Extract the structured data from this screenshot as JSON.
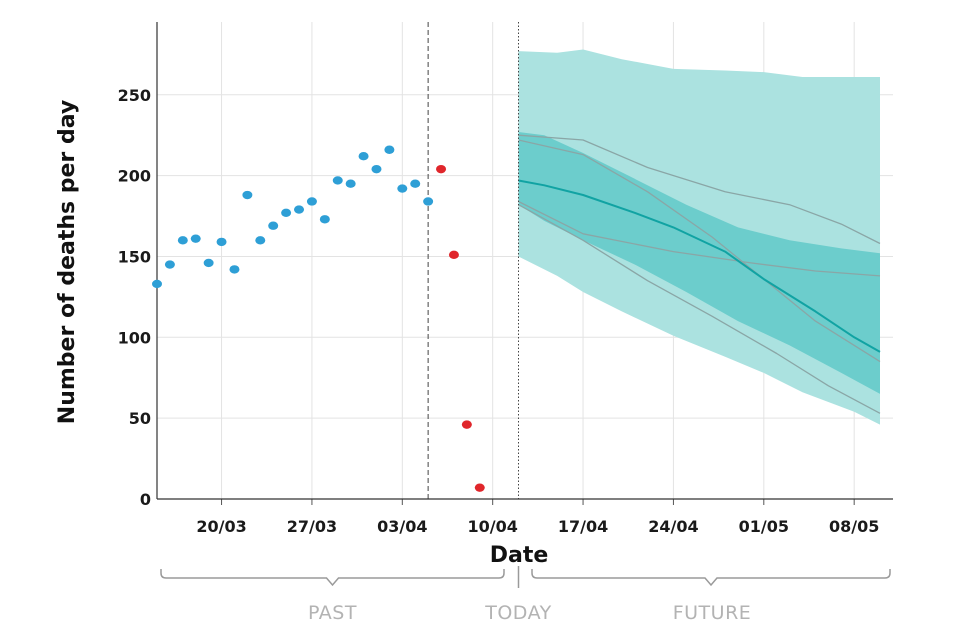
{
  "chart_data": {
    "type": "scatter",
    "xlabel": "Date",
    "ylabel": "Number of deaths per day",
    "ylim": [
      0,
      295
    ],
    "x_range": [
      "2020-03-15",
      "2020-05-11"
    ],
    "x_ticks": [
      {
        "date": "2020-03-20",
        "label": "20/03"
      },
      {
        "date": "2020-03-27",
        "label": "27/03"
      },
      {
        "date": "2020-04-03",
        "label": "03/04"
      },
      {
        "date": "2020-04-10",
        "label": "10/04"
      },
      {
        "date": "2020-04-17",
        "label": "17/04"
      },
      {
        "date": "2020-04-24",
        "label": "24/04"
      },
      {
        "date": "2020-05-01",
        "label": "01/05"
      },
      {
        "date": "2020-05-08",
        "label": "08/05"
      }
    ],
    "y_ticks": [
      0,
      50,
      100,
      150,
      200,
      250
    ],
    "grid": true,
    "colors": {
      "observed": "#2e9fd6",
      "incomplete": "#e0262b",
      "outer_band": "#abe2e0",
      "inner_band": "#6ccdcc",
      "median": "#11a3a3",
      "sample_lines": "#8aa6a6"
    },
    "series": [
      {
        "points": [
          {
            "x": "2020-03-15",
            "y": 133
          },
          {
            "x": "2020-03-16",
            "y": 145
          },
          {
            "x": "2020-03-17",
            "y": 160
          },
          {
            "x": "2020-03-18",
            "y": 161
          },
          {
            "x": "2020-03-19",
            "y": 146
          },
          {
            "x": "2020-03-20",
            "y": 159
          },
          {
            "x": "2020-03-21",
            "y": 142
          },
          {
            "x": "2020-03-22",
            "y": 188
          },
          {
            "x": "2020-03-23",
            "y": 160
          },
          {
            "x": "2020-03-24",
            "y": 169
          },
          {
            "x": "2020-03-25",
            "y": 177
          },
          {
            "x": "2020-03-26",
            "y": 179
          },
          {
            "x": "2020-03-27",
            "y": 184
          },
          {
            "x": "2020-03-28",
            "y": 173
          },
          {
            "x": "2020-03-29",
            "y": 197
          },
          {
            "x": "2020-03-30",
            "y": 195
          },
          {
            "x": "2020-03-31",
            "y": 212
          },
          {
            "x": "2020-04-01",
            "y": 204
          },
          {
            "x": "2020-04-02",
            "y": 216
          },
          {
            "x": "2020-04-03",
            "y": 192
          },
          {
            "x": "2020-04-04",
            "y": 195
          },
          {
            "x": "2020-04-05",
            "y": 184
          }
        ]
      },
      {
        "points": [
          {
            "x": "2020-04-06",
            "y": 204
          },
          {
            "x": "2020-04-07",
            "y": 151
          },
          {
            "x": "2020-04-08",
            "y": 46
          },
          {
            "x": "2020-04-09",
            "y": 7
          }
        ]
      }
    ],
    "forecast": {
      "outer_band": [
        {
          "x": "2020-04-12",
          "low": 150,
          "high": 277
        },
        {
          "x": "2020-04-15",
          "low": 138,
          "high": 276
        },
        {
          "x": "2020-04-17",
          "low": 128,
          "high": 278
        },
        {
          "x": "2020-04-20",
          "low": 116,
          "high": 272
        },
        {
          "x": "2020-04-24",
          "low": 101,
          "high": 266
        },
        {
          "x": "2020-04-28",
          "low": 88,
          "high": 265
        },
        {
          "x": "2020-05-01",
          "low": 78,
          "high": 264
        },
        {
          "x": "2020-05-04",
          "low": 66,
          "high": 261
        },
        {
          "x": "2020-05-08",
          "low": 54,
          "high": 261
        },
        {
          "x": "2020-05-10",
          "low": 46,
          "high": 261
        }
      ],
      "inner_band": [
        {
          "x": "2020-04-12",
          "low": 182,
          "high": 227
        },
        {
          "x": "2020-04-14",
          "low": 172,
          "high": 225
        },
        {
          "x": "2020-04-17",
          "low": 160,
          "high": 214
        },
        {
          "x": "2020-04-21",
          "low": 145,
          "high": 198
        },
        {
          "x": "2020-04-25",
          "low": 128,
          "high": 182
        },
        {
          "x": "2020-04-29",
          "low": 110,
          "high": 168
        },
        {
          "x": "2020-05-03",
          "low": 95,
          "high": 160
        },
        {
          "x": "2020-05-07",
          "low": 78,
          "high": 155
        },
        {
          "x": "2020-05-10",
          "low": 65,
          "high": 152
        }
      ],
      "median": [
        {
          "x": "2020-04-12",
          "y": 197
        },
        {
          "x": "2020-04-14",
          "y": 194
        },
        {
          "x": "2020-04-17",
          "y": 188
        },
        {
          "x": "2020-04-21",
          "y": 177
        },
        {
          "x": "2020-04-24",
          "y": 168
        },
        {
          "x": "2020-04-28",
          "y": 153
        },
        {
          "x": "2020-05-01",
          "y": 136
        },
        {
          "x": "2020-05-05",
          "y": 116
        },
        {
          "x": "2020-05-08",
          "y": 100
        },
        {
          "x": "2020-05-10",
          "y": 91
        }
      ],
      "sample_lines": [
        [
          {
            "x": "2020-04-12",
            "y": 225
          },
          {
            "x": "2020-04-17",
            "y": 222
          },
          {
            "x": "2020-04-22",
            "y": 205
          },
          {
            "x": "2020-04-28",
            "y": 190
          },
          {
            "x": "2020-05-03",
            "y": 182
          },
          {
            "x": "2020-05-07",
            "y": 170
          },
          {
            "x": "2020-05-10",
            "y": 158
          }
        ],
        [
          {
            "x": "2020-04-12",
            "y": 222
          },
          {
            "x": "2020-04-17",
            "y": 213
          },
          {
            "x": "2020-04-22",
            "y": 190
          },
          {
            "x": "2020-04-27",
            "y": 162
          },
          {
            "x": "2020-05-01",
            "y": 136
          },
          {
            "x": "2020-05-05",
            "y": 110
          },
          {
            "x": "2020-05-10",
            "y": 85
          }
        ],
        [
          {
            "x": "2020-04-12",
            "y": 184
          },
          {
            "x": "2020-04-17",
            "y": 164
          },
          {
            "x": "2020-04-24",
            "y": 153
          },
          {
            "x": "2020-04-30",
            "y": 146
          },
          {
            "x": "2020-05-05",
            "y": 141
          },
          {
            "x": "2020-05-10",
            "y": 138
          }
        ],
        [
          {
            "x": "2020-04-12",
            "y": 182
          },
          {
            "x": "2020-04-17",
            "y": 160
          },
          {
            "x": "2020-04-22",
            "y": 135
          },
          {
            "x": "2020-04-27",
            "y": 113
          },
          {
            "x": "2020-05-02",
            "y": 90
          },
          {
            "x": "2020-05-06",
            "y": 70
          },
          {
            "x": "2020-05-10",
            "y": 53
          }
        ]
      ]
    },
    "reference_lines": [
      {
        "x": "2020-04-05",
        "style": "dashed"
      },
      {
        "x": "2020-04-12",
        "style": "dotted"
      }
    ],
    "regions": [
      {
        "label": "PAST",
        "from": "2020-03-15",
        "to": "2020-04-11"
      },
      {
        "label": "TODAY",
        "at": "2020-04-12"
      },
      {
        "label": "FUTURE",
        "from": "2020-04-13",
        "to": "2020-05-11"
      }
    ]
  }
}
